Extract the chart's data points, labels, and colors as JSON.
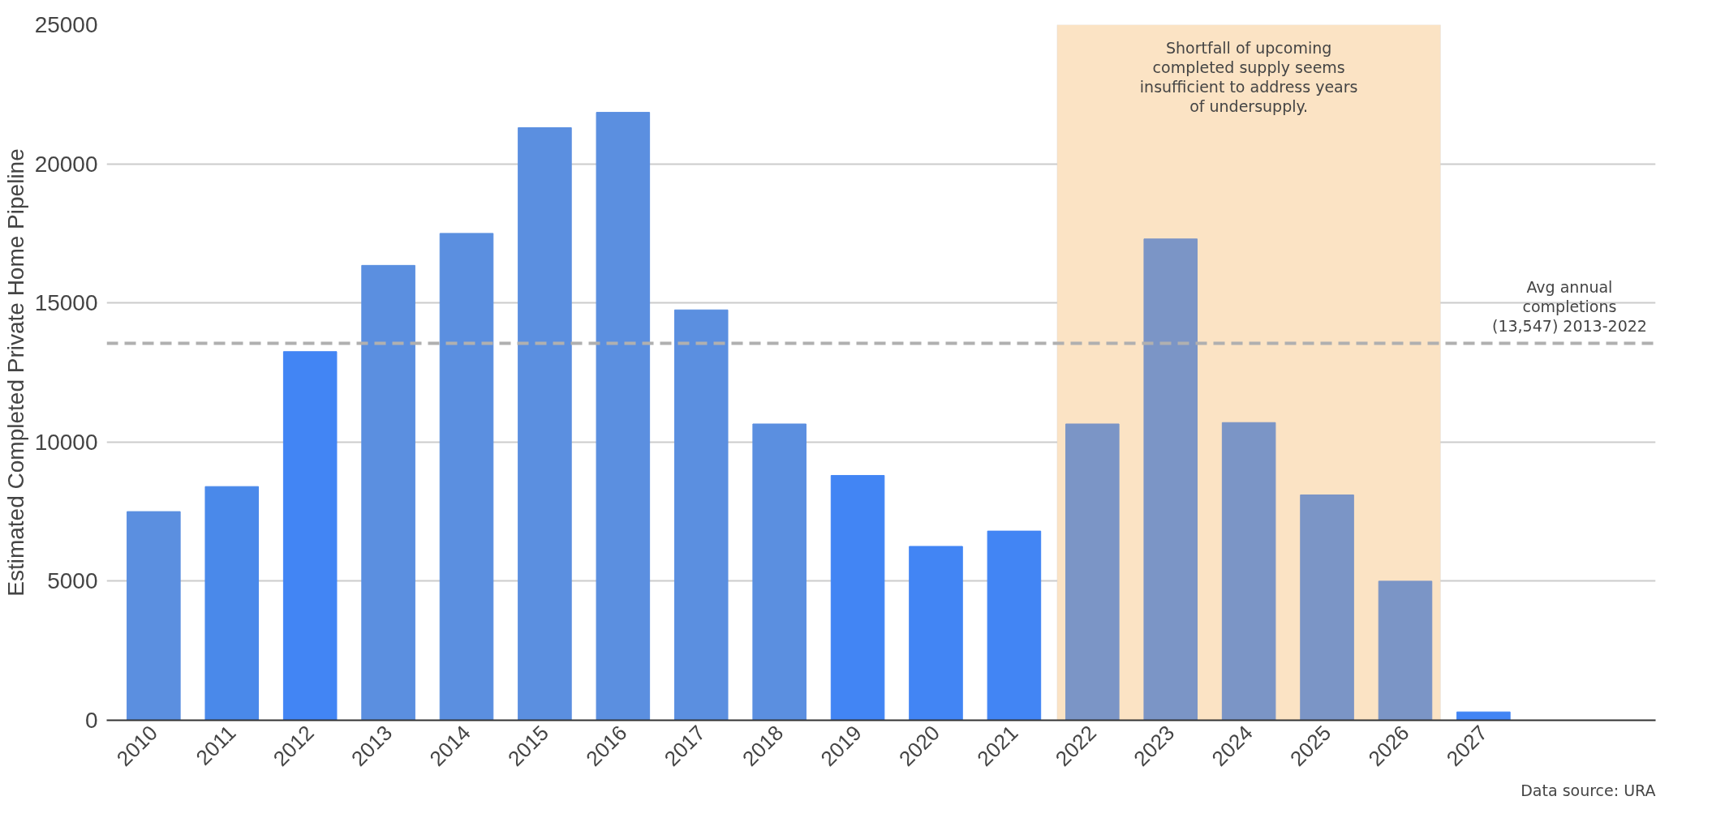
{
  "chart_data": {
    "type": "bar",
    "ylabel": "Estimated Completed Private Home Pipeline",
    "categories": [
      "2010",
      "2011",
      "2012",
      "2013",
      "2014",
      "2015",
      "2016",
      "2017",
      "2018",
      "2019",
      "2020",
      "2021",
      "2022",
      "2023",
      "2024",
      "2025",
      "2026",
      "2027"
    ],
    "values": [
      7500,
      8400,
      13250,
      16350,
      17500,
      21300,
      21850,
      14750,
      10650,
      8800,
      6250,
      6800,
      10650,
      17300,
      10700,
      8100,
      5000,
      300
    ],
    "colors": [
      "#5b8fe0",
      "#4a89ea",
      "#4285f4",
      "#5b8fe0",
      "#5b8fe0",
      "#5b8fe0",
      "#5b8fe0",
      "#5b8fe0",
      "#5b8fe0",
      "#4285f4",
      "#4285f4",
      "#4285f4",
      "#7b95c6",
      "#7b95c6",
      "#7b95c6",
      "#7b95c6",
      "#7b95c6",
      "#4285f4"
    ],
    "ylim": [
      0,
      25000
    ],
    "yticks": [
      0,
      5000,
      10000,
      15000,
      20000,
      25000
    ],
    "grid": "y",
    "ref_lines": [
      {
        "axis": "y",
        "value": 13547,
        "label": "Avg annual\ncompletions\n(13,547) 2013-2022",
        "color": "#b0b0b0",
        "line_style": "dashed"
      }
    ],
    "bands": [
      {
        "axis": "x",
        "from": "2022",
        "to": "2026",
        "label": "Shortfall of upcoming\ncompleted supply seems\ninsufficient to address years\nof undersupply.",
        "color": "#fbe3c4"
      }
    ],
    "annotations": [
      "Data source: URA"
    ]
  }
}
